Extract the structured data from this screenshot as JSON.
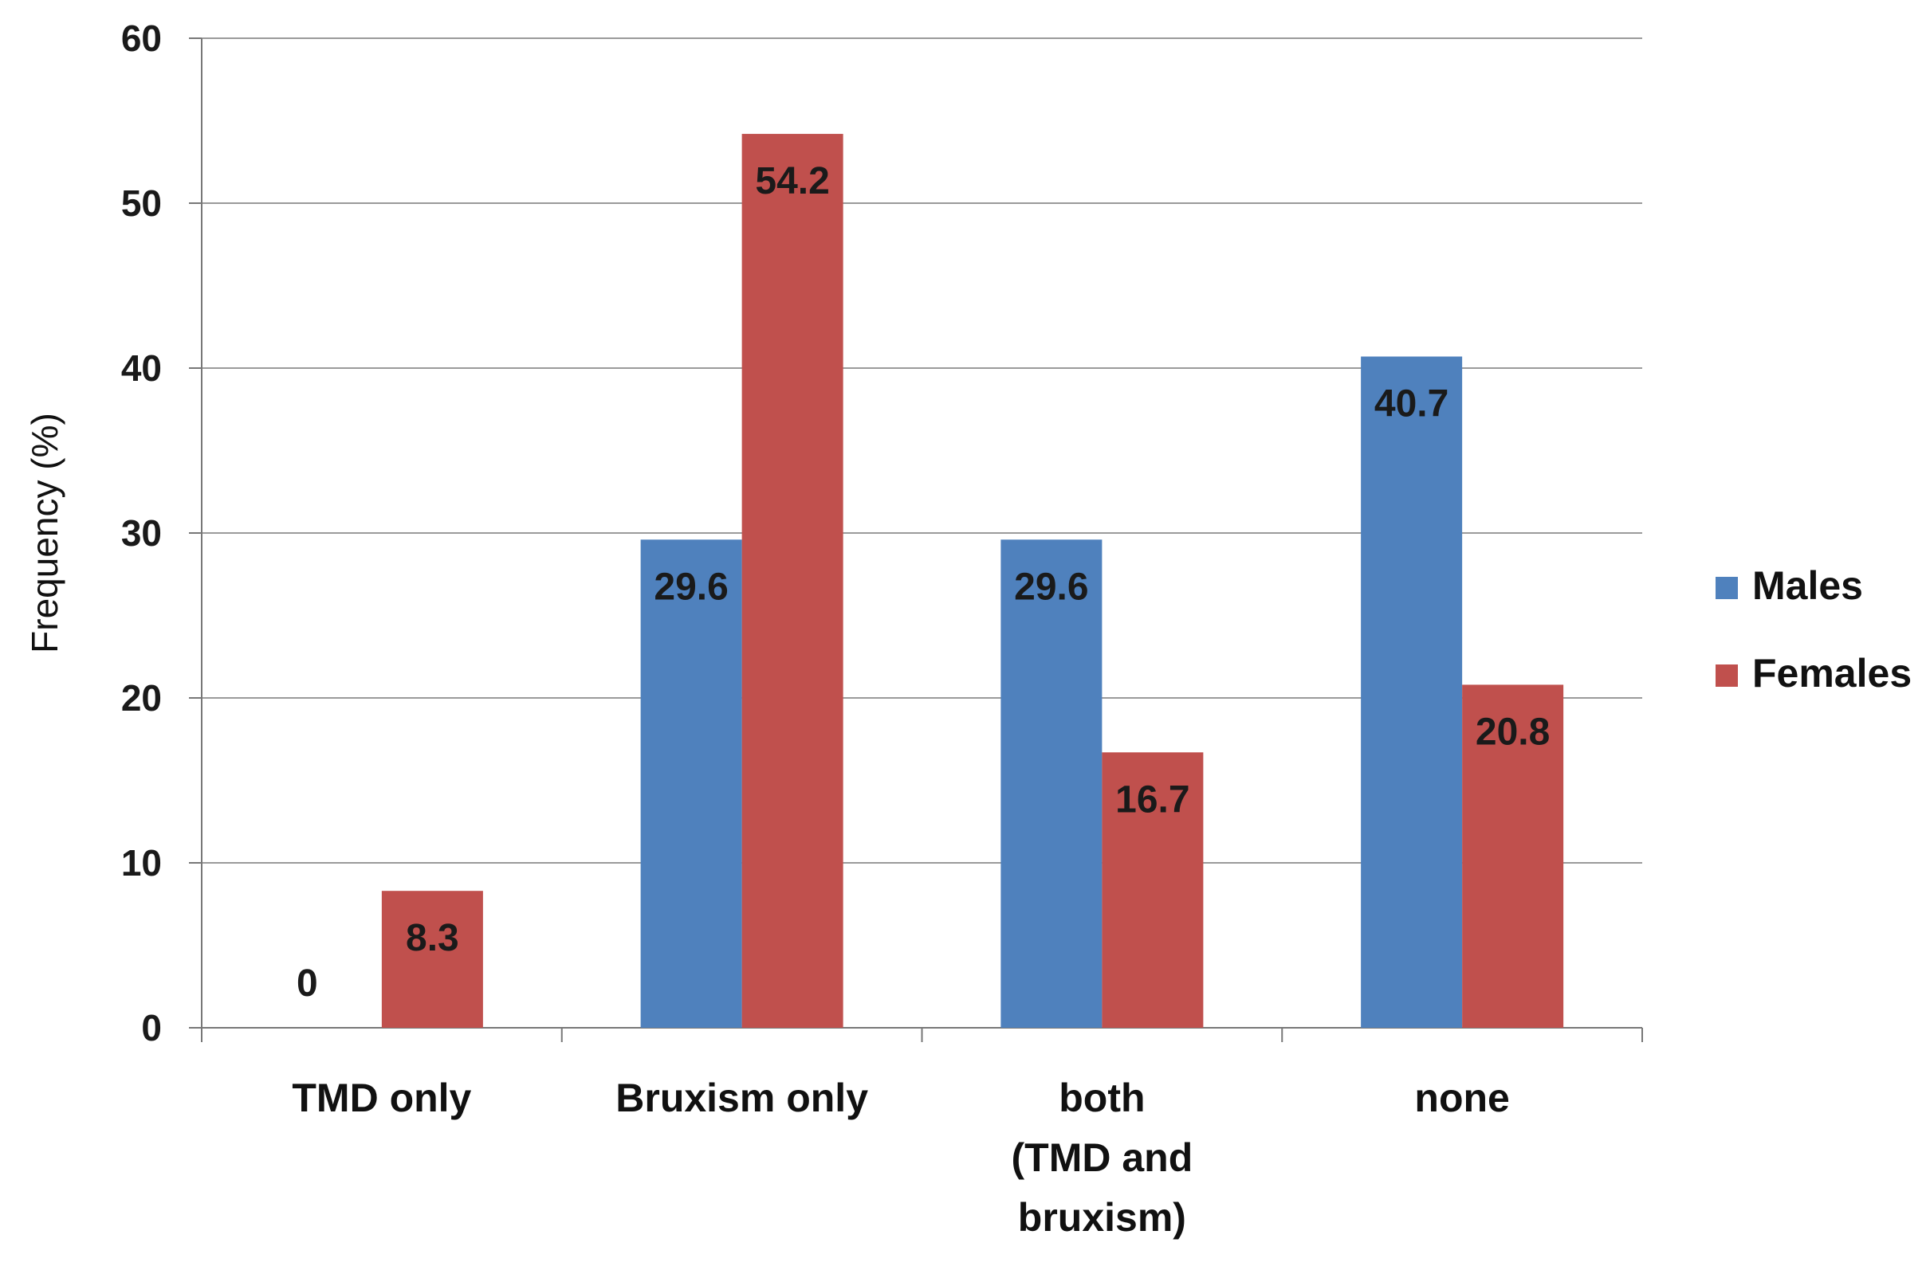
{
  "chart_data": {
    "type": "bar",
    "title": "",
    "xlabel": "",
    "ylabel": "Frequency (%)",
    "ylim": [
      0,
      60
    ],
    "yticks": [
      "0",
      "10",
      "20",
      "30",
      "40",
      "50",
      "60"
    ],
    "grid": true,
    "legend_position": "right",
    "categories": [
      [
        "TMD only"
      ],
      [
        "Bruxism only"
      ],
      [
        "both",
        "(TMD and",
        "bruxism)"
      ],
      [
        "none"
      ]
    ],
    "series": [
      {
        "name": "Males",
        "color": "#4F81BD",
        "values": [
          0,
          29.6,
          29.6,
          40.7
        ],
        "labels": [
          "0",
          "29.6",
          "29.6",
          "40.7"
        ]
      },
      {
        "name": "Females",
        "color": "#C0504D",
        "values": [
          8.3,
          54.2,
          16.7,
          20.8
        ],
        "labels": [
          "8.3",
          "54.2",
          "16.7",
          "20.8"
        ]
      }
    ]
  }
}
